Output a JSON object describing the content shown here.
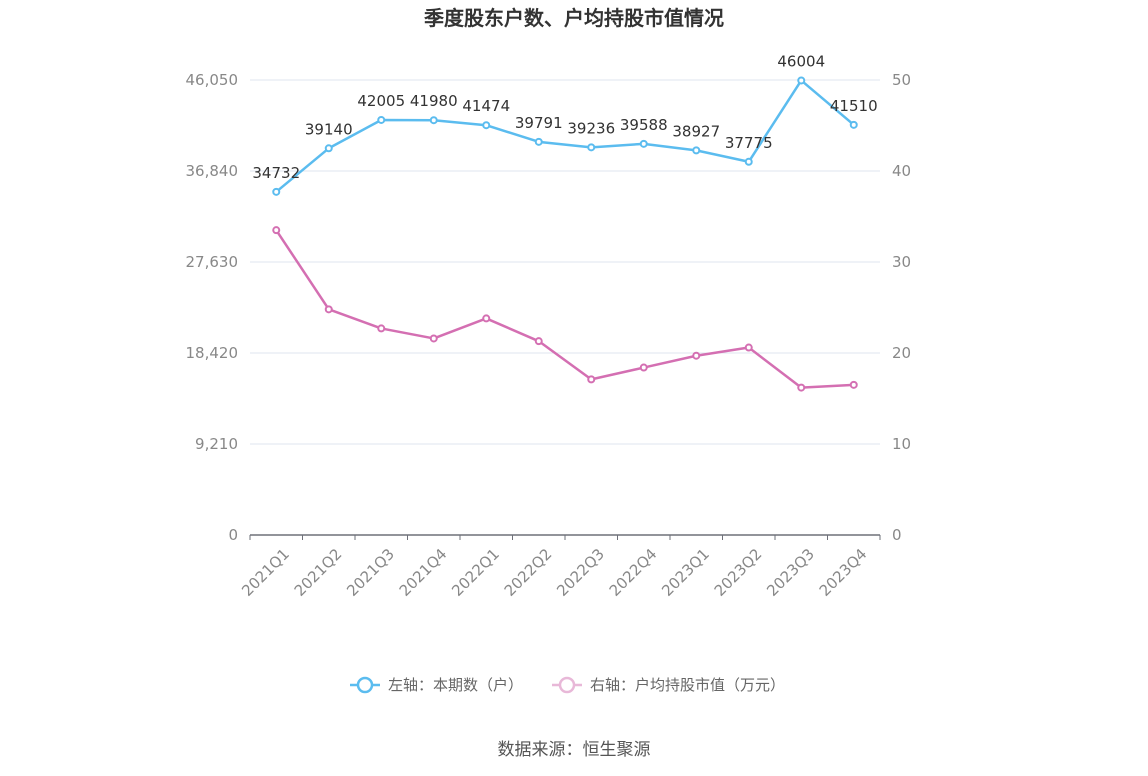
{
  "chart_data": {
    "type": "line",
    "title": "季度股东户数、户均持股市值情况",
    "categories": [
      "2021Q1",
      "2021Q2",
      "2021Q3",
      "2021Q4",
      "2022Q1",
      "2022Q2",
      "2022Q3",
      "2022Q4",
      "2023Q1",
      "2023Q2",
      "2023Q3",
      "2023Q4"
    ],
    "y_left": {
      "ticks": [
        "0",
        "9,210",
        "18,420",
        "27,630",
        "36,840",
        "46,050"
      ],
      "min": 0,
      "max": 46050
    },
    "y_right": {
      "ticks": [
        "0",
        "10",
        "20",
        "30",
        "40",
        "50"
      ],
      "min": 0,
      "max": 50
    },
    "grid": true,
    "legend_placement": "bottom",
    "series": [
      {
        "name": "左轴：本期数（户）",
        "axis": "left",
        "color": "#5bbcef",
        "values": [
          34732,
          39140,
          42005,
          41980,
          41474,
          39791,
          39236,
          39588,
          38927,
          37775,
          46004,
          41510
        ],
        "labels": [
          "34732",
          "39140",
          "42005",
          "41980",
          "41474",
          "39791",
          "39236",
          "39588",
          "38927",
          "37775",
          "46004",
          "41510"
        ]
      },
      {
        "name": "右轴：户均持股市值（万元）",
        "axis": "right",
        "color": "#d46fb2",
        "values": [
          33.5,
          24.8,
          22.7,
          21.6,
          23.8,
          21.3,
          17.1,
          18.4,
          19.7,
          20.6,
          16.2,
          16.5
        ]
      }
    ],
    "source": "数据来源：恒生聚源"
  }
}
